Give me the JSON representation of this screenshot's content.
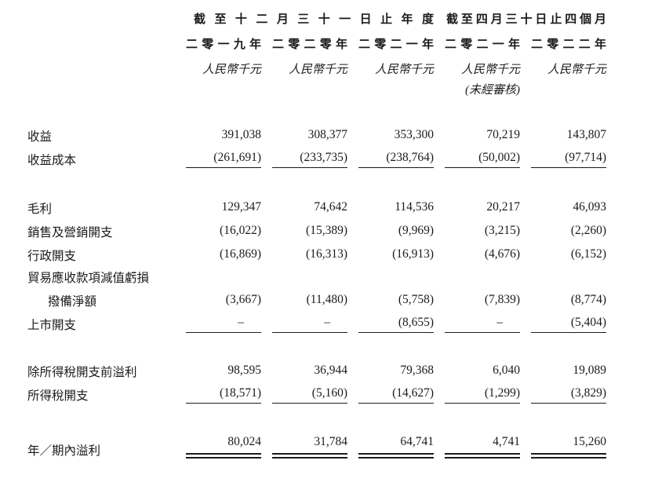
{
  "page": {
    "background": "#ffffff",
    "text_color": "#1b1b1b"
  },
  "table": {
    "col_groups": [
      {
        "label": "截至十二月三十一日止年度",
        "span": 3
      },
      {
        "label": "截至四月三十日止四個月",
        "span": 2
      }
    ],
    "columns": [
      {
        "year": "二零一九年",
        "unit": "人民幣千元",
        "note": ""
      },
      {
        "year": "二零二零年",
        "unit": "人民幣千元",
        "note": ""
      },
      {
        "year": "二零二一年",
        "unit": "人民幣千元",
        "note": ""
      },
      {
        "year": "二零二一年",
        "unit": "人民幣千元",
        "note": "(未經審核)"
      },
      {
        "year": "二零二二年",
        "unit": "人民幣千元",
        "note": ""
      }
    ],
    "rows": [
      {
        "label": "收益",
        "values": [
          "391,038",
          "308,377",
          "353,300",
          "70,219",
          "143,807"
        ]
      },
      {
        "label": "收益成本",
        "values": [
          "(261,691)",
          "(233,735)",
          "(238,764)",
          "(50,002)",
          "(97,714)"
        ],
        "underline": true,
        "spacer_after": 32
      },
      {
        "label": "毛利",
        "style": "bold",
        "values": [
          "129,347",
          "74,642",
          "114,536",
          "20,217",
          "46,093"
        ]
      },
      {
        "label": "銷售及營銷開支",
        "values": [
          "(16,022)",
          "(15,389)",
          "(9,969)",
          "(3,215)",
          "(2,260)"
        ]
      },
      {
        "label": "行政開支",
        "values": [
          "(16,869)",
          "(16,313)",
          "(16,913)",
          "(4,676)",
          "(6,152)"
        ]
      },
      {
        "label": "貿易應收款項減值虧損",
        "values": [
          "",
          "",
          "",
          "",
          ""
        ]
      },
      {
        "label": "撥備淨額",
        "indent": true,
        "values": [
          "(3,667)",
          "(11,480)",
          "(5,758)",
          "(7,839)",
          "(8,774)"
        ]
      },
      {
        "label": "上市開支",
        "values": [
          "–",
          "–",
          "(8,655)",
          "–",
          "(5,404)"
        ],
        "underline": true,
        "spacer_after": 27
      },
      {
        "label": "除所得稅開支前溢利",
        "style": "bold",
        "values": [
          "98,595",
          "36,944",
          "79,368",
          "6,040",
          "19,089"
        ]
      },
      {
        "label": "所得稅開支",
        "values": [
          "(18,571)",
          "(5,160)",
          "(14,627)",
          "(1,299)",
          "(3,829)"
        ],
        "underline": true,
        "spacer_after": 40
      },
      {
        "label": "年／期內溢利",
        "style": "bold",
        "values": [
          "80,024",
          "31,784",
          "64,741",
          "4,741",
          "15,260"
        ],
        "double_underline": true
      }
    ]
  }
}
